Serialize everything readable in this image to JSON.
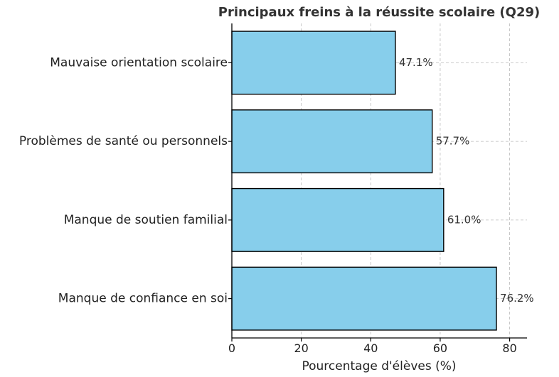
{
  "chart_data": {
    "type": "bar",
    "orientation": "horizontal",
    "title": "Principaux freins à la réussite scolaire (Q29)",
    "xlabel": "Pourcentage d'élèves (%)",
    "ylabel": "",
    "categories": [
      "Mauvaise orientation scolaire",
      "Problèmes de santé ou personnels",
      "Manque de soutien familial",
      "Manque de confiance en soi"
    ],
    "values": [
      47.1,
      57.7,
      61.0,
      76.2
    ],
    "value_labels": [
      "47.1%",
      "57.7%",
      "61.0%",
      "76.2%"
    ],
    "xlim": [
      0,
      85
    ],
    "xticks": [
      0,
      20,
      40,
      60,
      80
    ],
    "xtick_labels": [
      "0",
      "20",
      "40",
      "60",
      "80"
    ],
    "grid": true,
    "bar_color": "#87ceeb",
    "edge_color": "#000000"
  }
}
